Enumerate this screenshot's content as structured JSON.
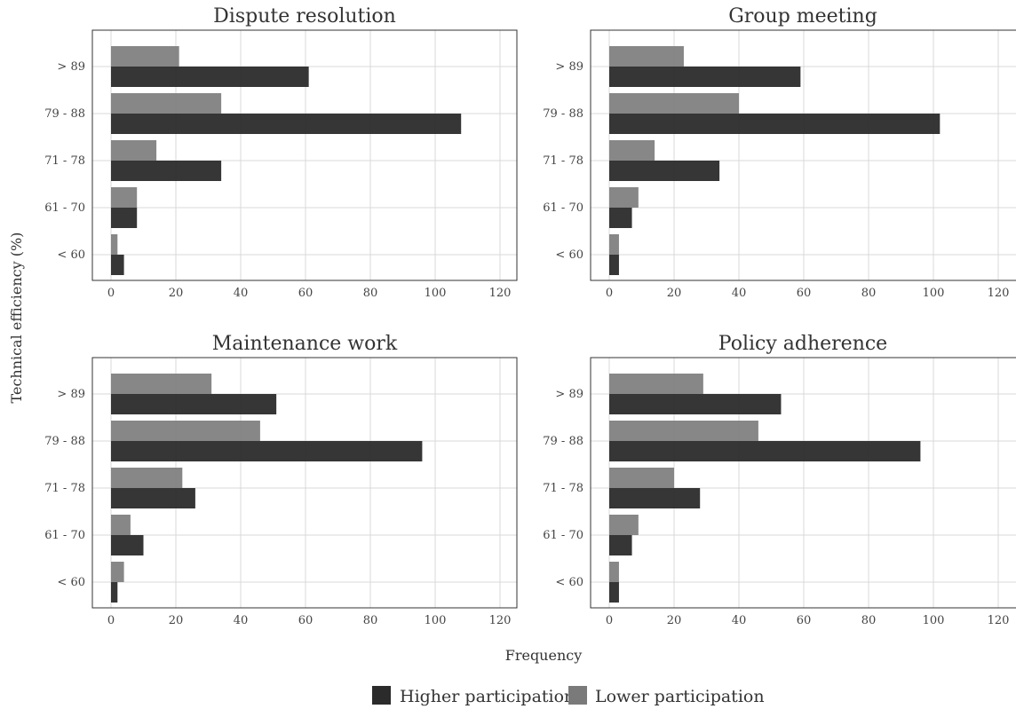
{
  "figure": {
    "ylabel": "Technical efficiency (%)",
    "xlabel": "Frequency",
    "legend": {
      "placement": "bottom",
      "items": [
        {
          "label": "Higher participation",
          "color": "#2b2b2b"
        },
        {
          "label": "Lower participation",
          "color": "#7a7a7a"
        }
      ]
    }
  },
  "chart_data": [
    {
      "type": "bar",
      "orientation": "horizontal",
      "title": "Dispute resolution",
      "categories": [
        "> 89",
        "79 - 88",
        "71 - 78",
        "61 - 70",
        "< 60"
      ],
      "series": [
        {
          "name": "Higher participation",
          "values": [
            61,
            108,
            34,
            8,
            4
          ]
        },
        {
          "name": "Lower participation",
          "values": [
            21,
            34,
            14,
            8,
            2
          ]
        }
      ],
      "xlim": [
        0,
        120
      ],
      "xticks": [
        0,
        20,
        40,
        60,
        80,
        100,
        120
      ],
      "grid": true
    },
    {
      "type": "bar",
      "orientation": "horizontal",
      "title": "Group meeting",
      "categories": [
        "> 89",
        "79 - 88",
        "71 - 78",
        "61 - 70",
        "< 60"
      ],
      "series": [
        {
          "name": "Higher participation",
          "values": [
            59,
            102,
            34,
            7,
            3
          ]
        },
        {
          "name": "Lower participation",
          "values": [
            23,
            40,
            14,
            9,
            3
          ]
        }
      ],
      "xlim": [
        0,
        120
      ],
      "xticks": [
        0,
        20,
        40,
        60,
        80,
        100,
        120
      ],
      "grid": true
    },
    {
      "type": "bar",
      "orientation": "horizontal",
      "title": "Maintenance work",
      "categories": [
        "> 89",
        "79 - 88",
        "71 - 78",
        "61 - 70",
        "< 60"
      ],
      "series": [
        {
          "name": "Higher participation",
          "values": [
            51,
            96,
            26,
            10,
            2
          ]
        },
        {
          "name": "Lower participation",
          "values": [
            31,
            46,
            22,
            6,
            4
          ]
        }
      ],
      "xlim": [
        0,
        120
      ],
      "xticks": [
        0,
        20,
        40,
        60,
        80,
        100,
        120
      ],
      "grid": true
    },
    {
      "type": "bar",
      "orientation": "horizontal",
      "title": "Policy adherence",
      "categories": [
        "> 89",
        "79 - 88",
        "71 - 78",
        "61 - 70",
        "< 60"
      ],
      "series": [
        {
          "name": "Higher participation",
          "values": [
            53,
            96,
            28,
            7,
            3
          ]
        },
        {
          "name": "Lower participation",
          "values": [
            29,
            46,
            20,
            9,
            3
          ]
        }
      ],
      "xlim": [
        0,
        120
      ],
      "xticks": [
        0,
        20,
        40,
        60,
        80,
        100,
        120
      ],
      "grid": true
    }
  ]
}
